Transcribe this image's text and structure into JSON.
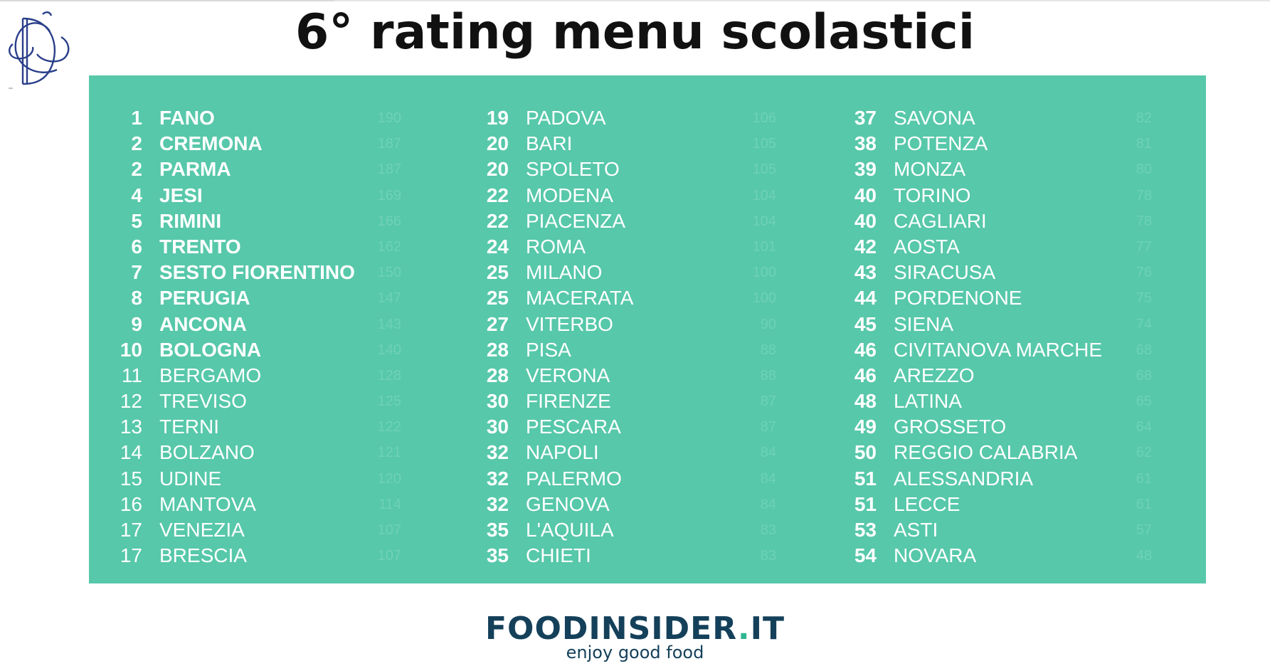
{
  "title": "6° rating menu scolastici",
  "colors": {
    "panel": "#57c8aa",
    "brand_dark": "#14405a",
    "brand_green": "#2fb591"
  },
  "logo_icon": "monogram-logo-icon",
  "brand": {
    "name_part1": "FOODINSIDER",
    "dot": ".",
    "name_part2": "IT",
    "tagline": "enjoy good food"
  },
  "ranking": {
    "columns": [
      [
        {
          "rank": "1",
          "city": "FANO",
          "score": "190",
          "bold": true
        },
        {
          "rank": "2",
          "city": "CREMONA",
          "score": "187",
          "bold": true
        },
        {
          "rank": "2",
          "city": "PARMA",
          "score": "187",
          "bold": true
        },
        {
          "rank": "4",
          "city": "JESI",
          "score": "169",
          "bold": true
        },
        {
          "rank": "5",
          "city": "RIMINI",
          "score": "166",
          "bold": true
        },
        {
          "rank": "6",
          "city": "TRENTO",
          "score": "162",
          "bold": true
        },
        {
          "rank": "7",
          "city": "SESTO FIORENTINO",
          "score": "150",
          "bold": true
        },
        {
          "rank": "8",
          "city": "PERUGIA",
          "score": "147",
          "bold": true
        },
        {
          "rank": "9",
          "city": "ANCONA",
          "score": "143",
          "bold": true
        },
        {
          "rank": "10",
          "city": "BOLOGNA",
          "score": "140",
          "bold": true
        },
        {
          "rank": "11",
          "city": "BERGAMO",
          "score": "128",
          "bold": false
        },
        {
          "rank": "12",
          "city": "TREVISO",
          "score": "125",
          "bold": false
        },
        {
          "rank": "13",
          "city": "TERNI",
          "score": "122",
          "bold": false
        },
        {
          "rank": "14",
          "city": "BOLZANO",
          "score": "121",
          "bold": false
        },
        {
          "rank": "15",
          "city": "UDINE",
          "score": "120",
          "bold": false
        },
        {
          "rank": "16",
          "city": "MANTOVA",
          "score": "114",
          "bold": false
        },
        {
          "rank": "17",
          "city": "VENEZIA",
          "score": "107",
          "bold": false
        },
        {
          "rank": "17",
          "city": "BRESCIA",
          "score": "107",
          "bold": false
        }
      ],
      [
        {
          "rank": "19",
          "city": "PADOVA",
          "score": "106",
          "bold": false
        },
        {
          "rank": "20",
          "city": "BARI",
          "score": "105",
          "bold": false
        },
        {
          "rank": "20",
          "city": "SPOLETO",
          "score": "105",
          "bold": false
        },
        {
          "rank": "22",
          "city": "MODENA",
          "score": "104",
          "bold": false
        },
        {
          "rank": "22",
          "city": "PIACENZA",
          "score": "104",
          "bold": false
        },
        {
          "rank": "24",
          "city": "ROMA",
          "score": "101",
          "bold": false
        },
        {
          "rank": "25",
          "city": "MILANO",
          "score": "100",
          "bold": false
        },
        {
          "rank": "25",
          "city": "MACERATA",
          "score": "100",
          "bold": false
        },
        {
          "rank": "27",
          "city": "VITERBO",
          "score": "90",
          "bold": false
        },
        {
          "rank": "28",
          "city": "PISA",
          "score": "88",
          "bold": false
        },
        {
          "rank": "28",
          "city": "VERONA",
          "score": "88",
          "bold": false
        },
        {
          "rank": "30",
          "city": "FIRENZE",
          "score": "87",
          "bold": false
        },
        {
          "rank": "30",
          "city": "PESCARA",
          "score": "87",
          "bold": false
        },
        {
          "rank": "32",
          "city": "NAPOLI",
          "score": "84",
          "bold": false
        },
        {
          "rank": "32",
          "city": "PALERMO",
          "score": "84",
          "bold": false
        },
        {
          "rank": "32",
          "city": "GENOVA",
          "score": "84",
          "bold": false
        },
        {
          "rank": "35",
          "city": "L'AQUILA",
          "score": "83",
          "bold": false
        },
        {
          "rank": "35",
          "city": "CHIETI",
          "score": "83",
          "bold": false
        }
      ],
      [
        {
          "rank": "37",
          "city": "SAVONA",
          "score": "82",
          "bold": false
        },
        {
          "rank": "38",
          "city": "POTENZA",
          "score": "81",
          "bold": false
        },
        {
          "rank": "39",
          "city": "MONZA",
          "score": "80",
          "bold": false
        },
        {
          "rank": "40",
          "city": "TORINO",
          "score": "78",
          "bold": false
        },
        {
          "rank": "40",
          "city": "CAGLIARI",
          "score": "78",
          "bold": false
        },
        {
          "rank": "42",
          "city": "AOSTA",
          "score": "77",
          "bold": false
        },
        {
          "rank": "43",
          "city": "SIRACUSA",
          "score": "76",
          "bold": false
        },
        {
          "rank": "44",
          "city": "PORDENONE",
          "score": "75",
          "bold": false
        },
        {
          "rank": "45",
          "city": "SIENA",
          "score": "74",
          "bold": false
        },
        {
          "rank": "46",
          "city": "CIVITANOVA MARCHE",
          "score": "68",
          "bold": false
        },
        {
          "rank": "46",
          "city": "AREZZO",
          "score": "68",
          "bold": false
        },
        {
          "rank": "48",
          "city": "LATINA",
          "score": "65",
          "bold": false
        },
        {
          "rank": "49",
          "city": "GROSSETO",
          "score": "64",
          "bold": false
        },
        {
          "rank": "50",
          "city": "REGGIO CALABRIA",
          "score": "62",
          "bold": false
        },
        {
          "rank": "51",
          "city": "ALESSANDRIA",
          "score": "61",
          "bold": false
        },
        {
          "rank": "51",
          "city": "LECCE",
          "score": "61",
          "bold": false
        },
        {
          "rank": "53",
          "city": "ASTI",
          "score": "57",
          "bold": false
        },
        {
          "rank": "54",
          "city": "NOVARA",
          "score": "48",
          "bold": false
        }
      ]
    ]
  }
}
